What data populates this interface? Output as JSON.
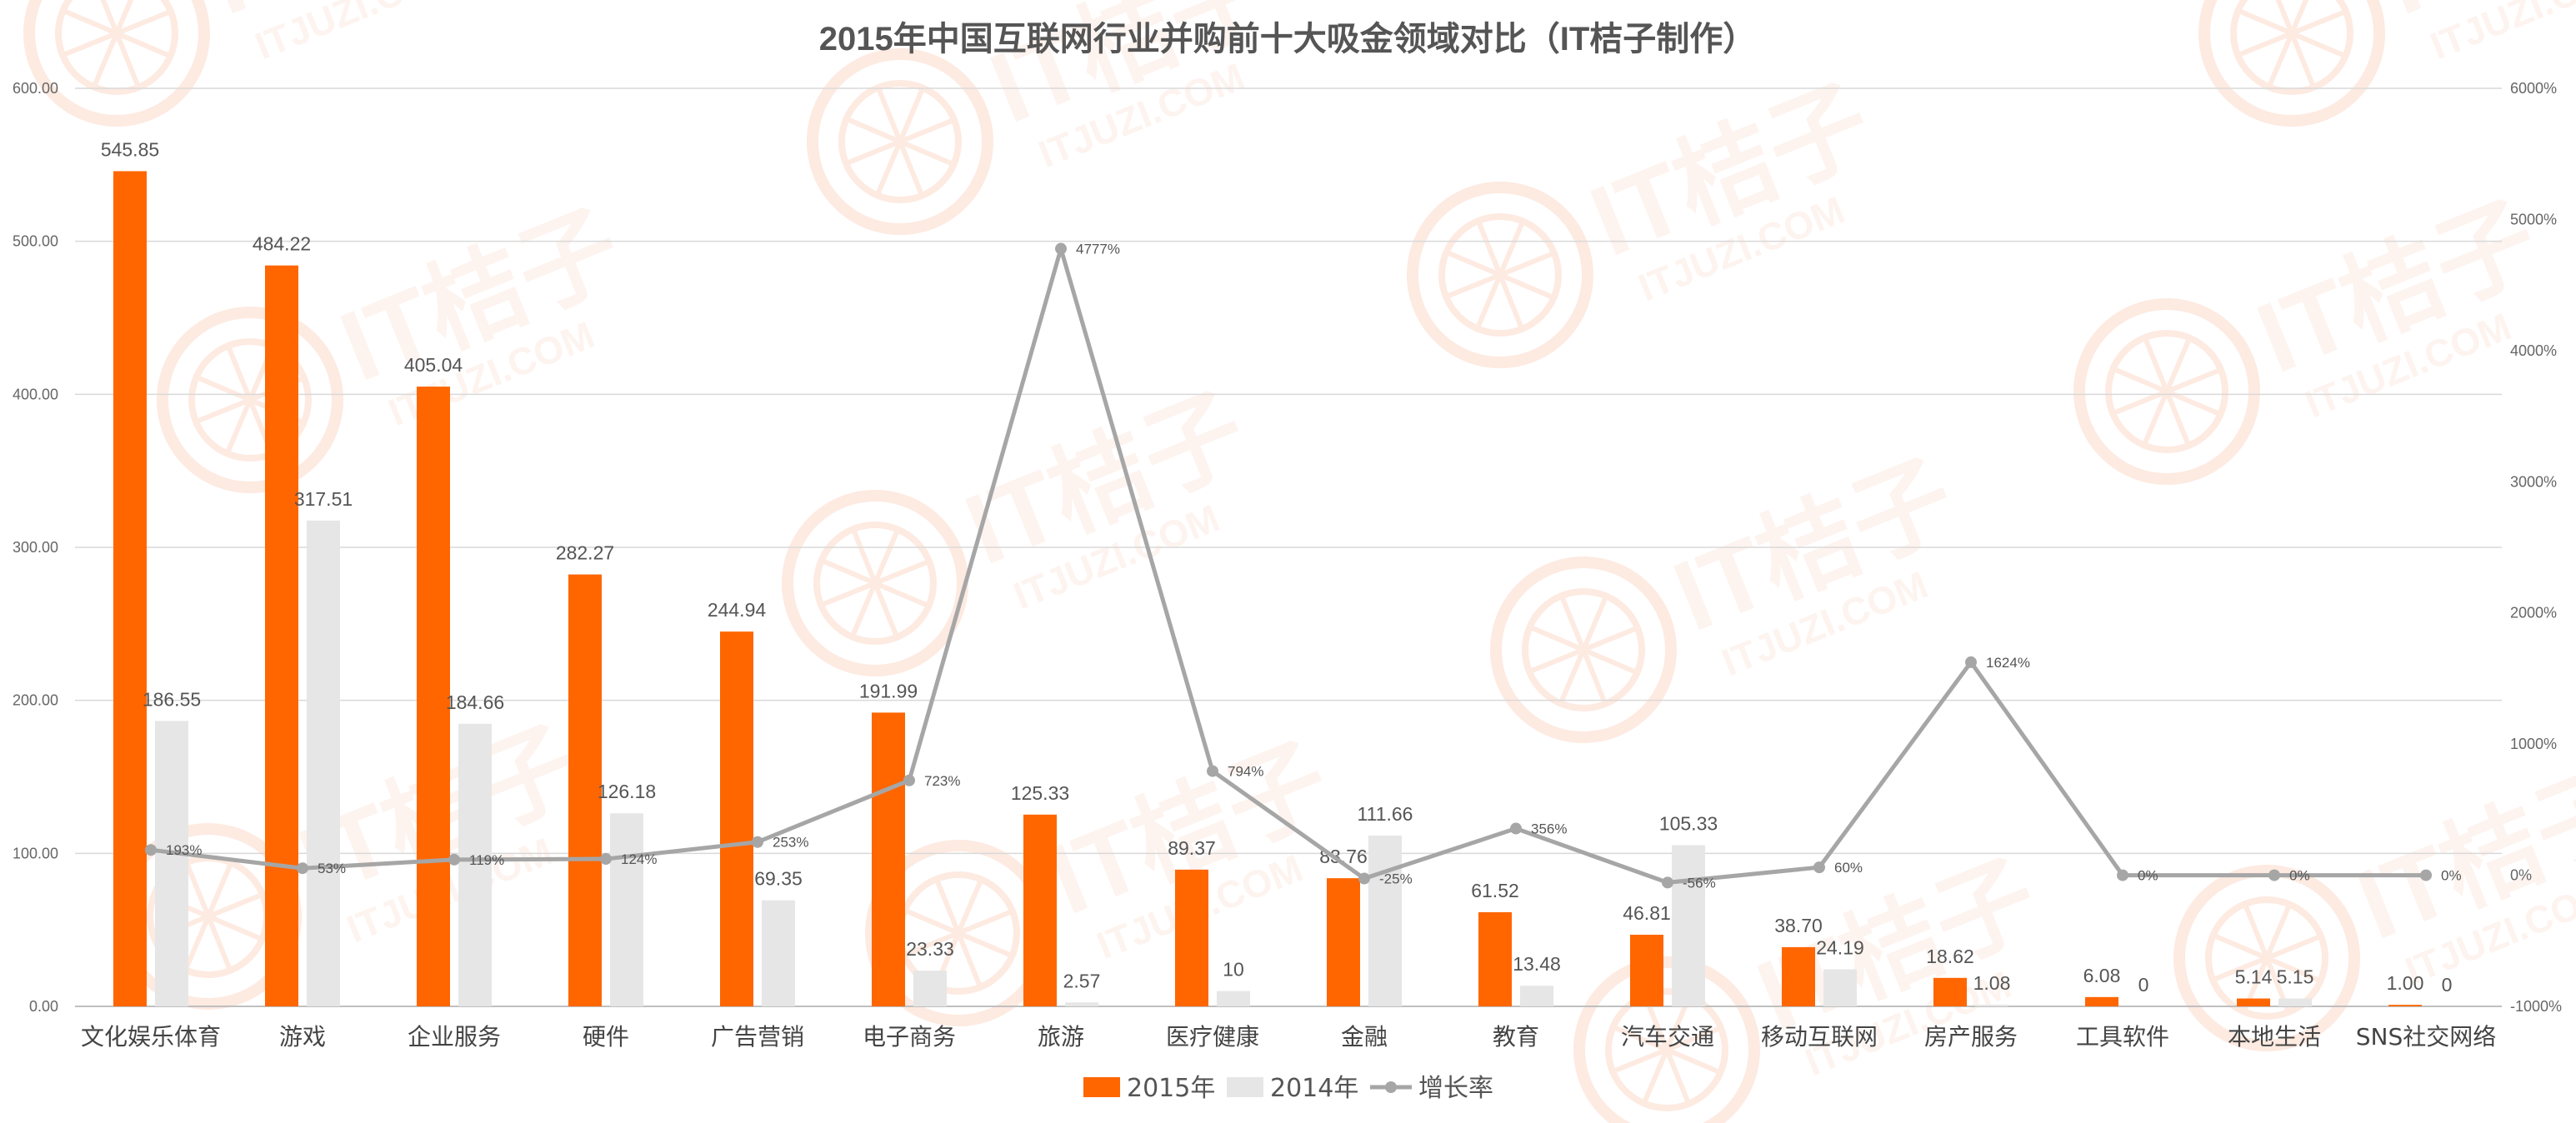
{
  "chart_data": {
    "type": "bar",
    "title": "2015年中国互联网行业并购前十大吸金领域对比（IT桔子制作）",
    "categories": [
      "文化娱乐体育",
      "游戏",
      "企业服务",
      "硬件",
      "广告营销",
      "电子商务",
      "旅游",
      "医疗健康",
      "金融",
      "教育",
      "汽车交通",
      "移动互联网",
      "房产服务",
      "工具软件",
      "本地生活",
      "SNS社交网络"
    ],
    "series": [
      {
        "name": "2015年",
        "color": "#ff6600",
        "values": [
          545.85,
          484.22,
          405.04,
          282.27,
          244.94,
          191.99,
          125.33,
          89.37,
          83.76,
          61.52,
          46.81,
          38.7,
          18.62,
          6.08,
          5.14,
          1.0
        ],
        "labels": [
          "545.85",
          "484.22",
          "405.04",
          "282.27",
          "244.94",
          "191.99",
          "125.33",
          "89.37",
          "83.76",
          "61.52",
          "46.81",
          "38.70",
          "18.62",
          "6.08",
          "5.14",
          "1.00"
        ]
      },
      {
        "name": "2014年",
        "color": "#e6e6e6",
        "values": [
          186.55,
          317.51,
          184.66,
          126.18,
          69.35,
          23.33,
          2.57,
          10,
          111.66,
          13.48,
          105.33,
          24.19,
          1.08,
          0,
          5.15,
          0
        ],
        "labels": [
          "186.55",
          "317.51",
          "184.66",
          "126.18",
          "69.35",
          "23.33",
          "2.57",
          "10",
          "111.66",
          "13.48",
          "105.33",
          "24.19",
          "1.08",
          "0",
          "5.15",
          "0"
        ]
      },
      {
        "name": "增长率",
        "type": "line",
        "axis": "right",
        "color": "#a6a6a6",
        "values": [
          193,
          53,
          119,
          124,
          253,
          723,
          4777,
          794,
          -25,
          356,
          -56,
          60,
          1624,
          0,
          0,
          0
        ],
        "labels": [
          "193%",
          "53%",
          "119%",
          "124%",
          "253%",
          "723%",
          "4777%",
          "794%",
          "-25%",
          "356%",
          "-56%",
          "60%",
          "1624%",
          "0%",
          "0%",
          "0%"
        ]
      }
    ],
    "y_left": {
      "min": 0,
      "max": 600,
      "ticks": [
        0,
        100,
        200,
        300,
        400,
        500,
        600
      ],
      "tick_labels": [
        "0.00",
        "100.00",
        "200.00",
        "300.00",
        "400.00",
        "500.00",
        "600.00"
      ]
    },
    "y_right": {
      "min": -1000,
      "max": 6000,
      "ticks": [
        -1000,
        0,
        1000,
        2000,
        3000,
        4000,
        5000,
        6000
      ],
      "tick_labels": [
        "-1000%",
        "0%",
        "1000%",
        "2000%",
        "3000%",
        "4000%",
        "5000%",
        "6000%"
      ]
    },
    "grid": true,
    "legend": "bottom",
    "watermark": {
      "text": "IT桔子",
      "subtext": "ITJUZI.COM",
      "color": "#f26522"
    }
  }
}
